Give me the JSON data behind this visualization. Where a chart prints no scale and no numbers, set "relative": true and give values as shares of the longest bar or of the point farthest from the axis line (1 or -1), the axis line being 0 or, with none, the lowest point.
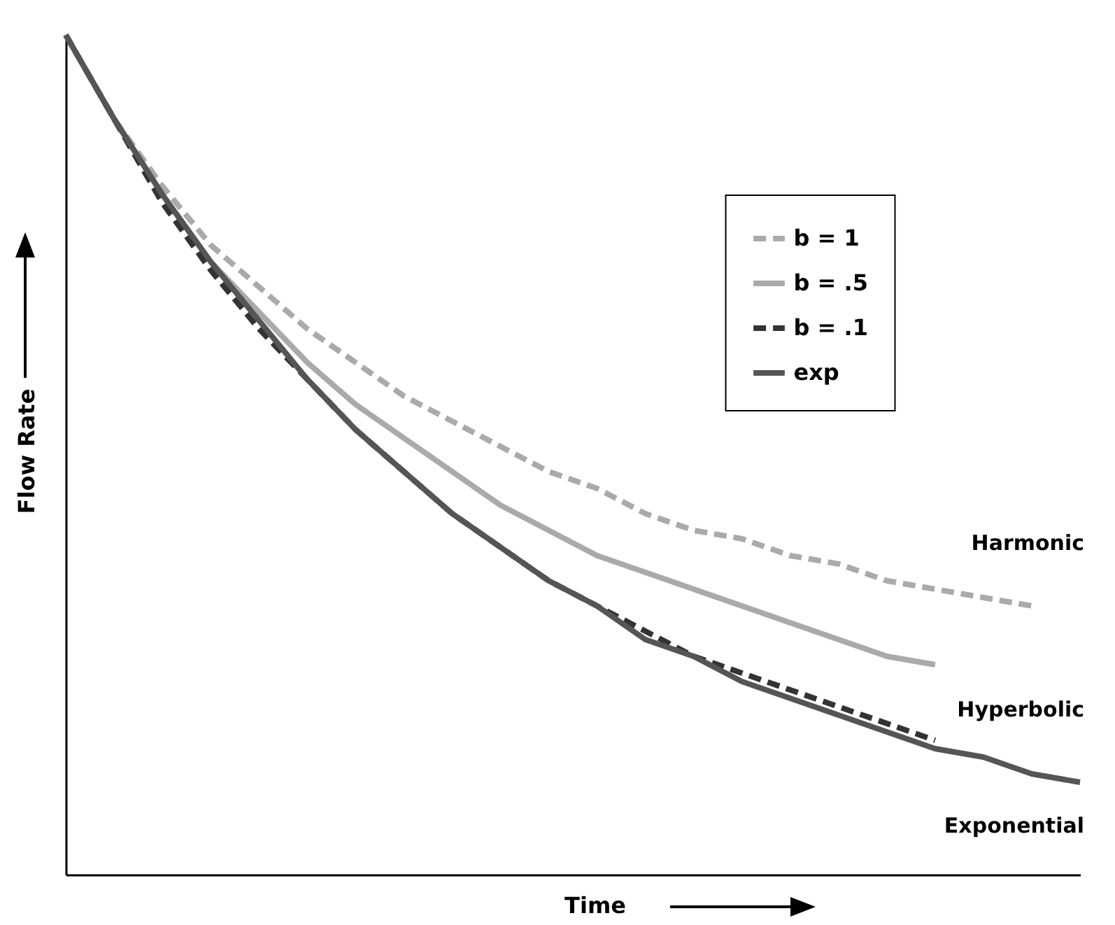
{
  "chart_data": {
    "type": "line",
    "relative": true,
    "xlabel": "Time",
    "ylabel": "Flow Rate",
    "legend": "top right",
    "categories": [
      null,
      null,
      null,
      null,
      null,
      null,
      null,
      null,
      null,
      null,
      null,
      null,
      null,
      null,
      null,
      null,
      null,
      null,
      null,
      null,
      null,
      null
    ],
    "series": [
      {
        "name": "b = 1",
        "color": "#aaaaaa",
        "line_style": "dashed",
        "values": [
          1,
          0.9,
          0.82,
          0.75,
          0.7,
          0.65,
          0.61,
          0.57,
          0.54,
          0.51,
          0.48,
          0.46,
          0.43,
          0.41,
          0.4,
          0.38,
          0.37,
          0.35,
          0.34,
          0.33,
          0.32,
          null
        ]
      },
      {
        "name": "b = .5",
        "color": "#aaaaaa",
        "line_style": "solid",
        "values": [
          1,
          0.9,
          0.81,
          0.73,
          0.67,
          0.61,
          0.56,
          0.52,
          0.48,
          0.44,
          0.41,
          0.38,
          0.36,
          0.34,
          0.32,
          0.3,
          0.28,
          0.26,
          0.25,
          null,
          null,
          null
        ]
      },
      {
        "name": "b = .1",
        "color": "#333333",
        "line_style": "dashed",
        "values": [
          1,
          0.9,
          0.8,
          0.72,
          0.65,
          0.59,
          0.53,
          0.48,
          0.43,
          0.39,
          0.35,
          0.32,
          0.29,
          0.26,
          0.24,
          0.22,
          0.2,
          0.18,
          0.16,
          null,
          null,
          null
        ]
      },
      {
        "name": "exp",
        "color": "#555555",
        "line_style": "solid",
        "values": [
          1,
          0.9,
          0.81,
          0.73,
          0.66,
          0.59,
          0.53,
          0.48,
          0.43,
          0.39,
          0.35,
          0.32,
          0.28,
          0.26,
          0.23,
          0.21,
          0.19,
          0.17,
          0.15,
          0.14,
          0.12,
          0.11
        ]
      }
    ],
    "annotations": [
      "Harmonic",
      "Hyperbolic",
      "Exponential"
    ]
  }
}
